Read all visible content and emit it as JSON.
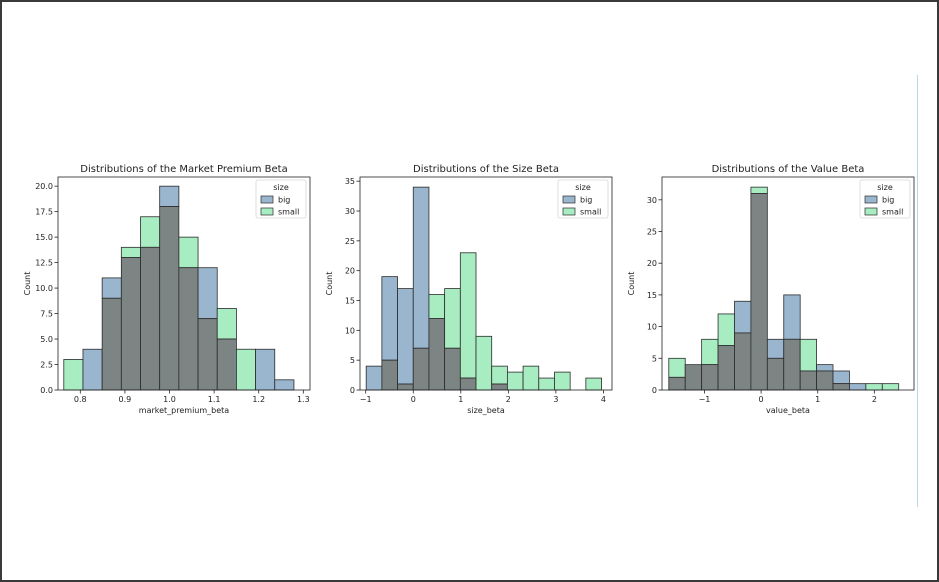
{
  "chart_data": [
    {
      "type": "histogram",
      "title": "Distributions of the Market Premium Beta",
      "xlabel": "market_premium_beta",
      "ylabel": "Count",
      "xlim": [
        0.75,
        1.315
      ],
      "ylim": [
        0,
        20.9
      ],
      "xticks": [
        0.8,
        0.9,
        1.0,
        1.1,
        1.2,
        1.3
      ],
      "xtick_labels": [
        "0.8",
        "0.9",
        "1.0",
        "1.1",
        "1.2",
        "1.3"
      ],
      "yticks": [
        0,
        2.5,
        5,
        7.5,
        10,
        12.5,
        15,
        17.5,
        20
      ],
      "ytick_labels": [
        "0.0",
        "2.5",
        "5.0",
        "7.5",
        "10.0",
        "12.5",
        "15.0",
        "17.5",
        "20.0"
      ],
      "bin_edges": [
        0.763,
        0.806,
        0.849,
        0.892,
        0.935,
        0.978,
        1.021,
        1.064,
        1.107,
        1.15,
        1.193,
        1.236,
        1.279
      ],
      "legend": {
        "title": "size",
        "entries": [
          "big",
          "small"
        ],
        "position": "top-right"
      },
      "series": [
        {
          "name": "big",
          "color": "#9ab6cf",
          "values": [
            0,
            4,
            11,
            13,
            14,
            20,
            12,
            12,
            5,
            0,
            4,
            1
          ]
        },
        {
          "name": "small",
          "color": "#a8ecc1",
          "values": [
            3,
            0,
            9,
            14,
            17,
            18,
            15,
            7,
            8,
            4,
            0,
            0
          ]
        }
      ]
    },
    {
      "type": "histogram",
      "title": "Distributions of the Size Beta",
      "xlabel": "size_beta",
      "ylabel": "Count",
      "xlim": [
        -1.12,
        4.18
      ],
      "ylim": [
        0,
        35.7
      ],
      "xticks": [
        -1,
        0,
        1,
        2,
        3,
        4
      ],
      "xtick_labels": [
        "−1",
        "0",
        "1",
        "2",
        "3",
        "4"
      ],
      "yticks": [
        0,
        5,
        10,
        15,
        20,
        25,
        30,
        35
      ],
      "ytick_labels": [
        "0",
        "5",
        "10",
        "15",
        "20",
        "25",
        "30",
        "35"
      ],
      "bin_edges": [
        -0.99,
        -0.66,
        -0.33,
        0.0,
        0.33,
        0.66,
        0.99,
        1.32,
        1.65,
        1.98,
        2.31,
        2.64,
        2.97,
        3.3,
        3.63,
        3.96
      ],
      "legend": {
        "title": "size",
        "entries": [
          "big",
          "small"
        ],
        "position": "top-right"
      },
      "series": [
        {
          "name": "big",
          "color": "#9ab6cf",
          "values": [
            4,
            19,
            17,
            34,
            12,
            7,
            2,
            0,
            1,
            0,
            0,
            0,
            0,
            0,
            0
          ]
        },
        {
          "name": "small",
          "color": "#a8ecc1",
          "values": [
            0,
            5,
            1,
            7,
            16,
            17,
            23,
            9,
            4,
            3,
            4,
            2,
            3,
            0,
            2
          ]
        }
      ]
    },
    {
      "type": "histogram",
      "title": "Distributions of the Value Beta",
      "xlabel": "value_beta",
      "ylabel": "Count",
      "xlim": [
        -1.75,
        2.7
      ],
      "ylim": [
        0,
        33.6
      ],
      "xticks": [
        -1,
        0,
        1,
        2
      ],
      "xtick_labels": [
        "−1",
        "0",
        "1",
        "2"
      ],
      "yticks": [
        0,
        5,
        10,
        15,
        20,
        25,
        30
      ],
      "ytick_labels": [
        "0",
        "5",
        "10",
        "15",
        "20",
        "25",
        "30"
      ],
      "bin_edges": [
        -1.63,
        -1.34,
        -1.05,
        -0.76,
        -0.47,
        -0.18,
        0.11,
        0.4,
        0.69,
        0.98,
        1.27,
        1.56,
        1.85,
        2.14,
        2.43
      ],
      "legend": {
        "title": "size",
        "entries": [
          "big",
          "small"
        ],
        "position": "top-right"
      },
      "series": [
        {
          "name": "big",
          "color": "#9ab6cf",
          "values": [
            2,
            4,
            4,
            7,
            14,
            31,
            8,
            15,
            3,
            4,
            3,
            1,
            0,
            0
          ]
        },
        {
          "name": "small",
          "color": "#a8ecc1",
          "values": [
            5,
            4,
            8,
            12,
            9,
            32,
            5,
            8,
            8,
            3,
            1,
            0,
            1,
            1
          ]
        }
      ]
    }
  ]
}
